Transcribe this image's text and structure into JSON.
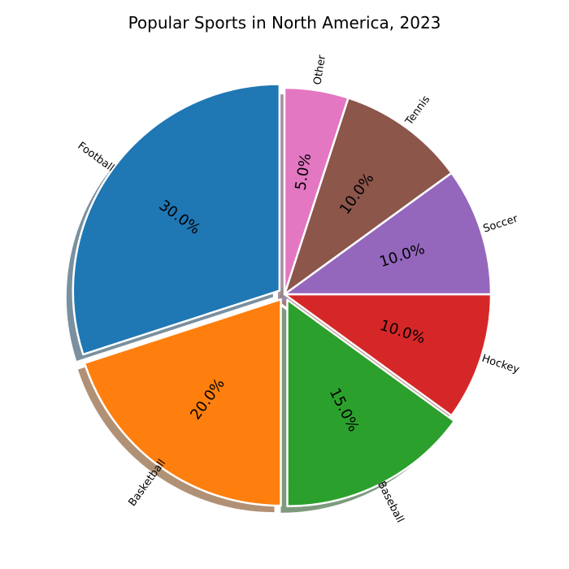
{
  "chart_data": {
    "type": "pie",
    "title": "Popular Sports in North America, 2023",
    "categories": [
      "Football",
      "Basketball",
      "Baseball",
      "Hockey",
      "Soccer",
      "Tennis",
      "Other"
    ],
    "values": [
      30,
      20,
      15,
      10,
      10,
      10,
      5
    ],
    "percent_labels": [
      "30.0%",
      "20.0%",
      "15.0%",
      "10.0%",
      "10.0%",
      "10.0%",
      "5.0%"
    ],
    "colors": [
      "#1f77b4",
      "#ff7f0e",
      "#2ca02c",
      "#d62728",
      "#9467bd",
      "#8c564b",
      "#e377c2"
    ],
    "start_angle_deg": 90,
    "direction": "counterclockwise",
    "shadow": true,
    "explode": [
      0.03,
      0.03,
      0.03,
      0,
      0,
      0,
      0
    ],
    "edge_color": "#ffffff"
  }
}
